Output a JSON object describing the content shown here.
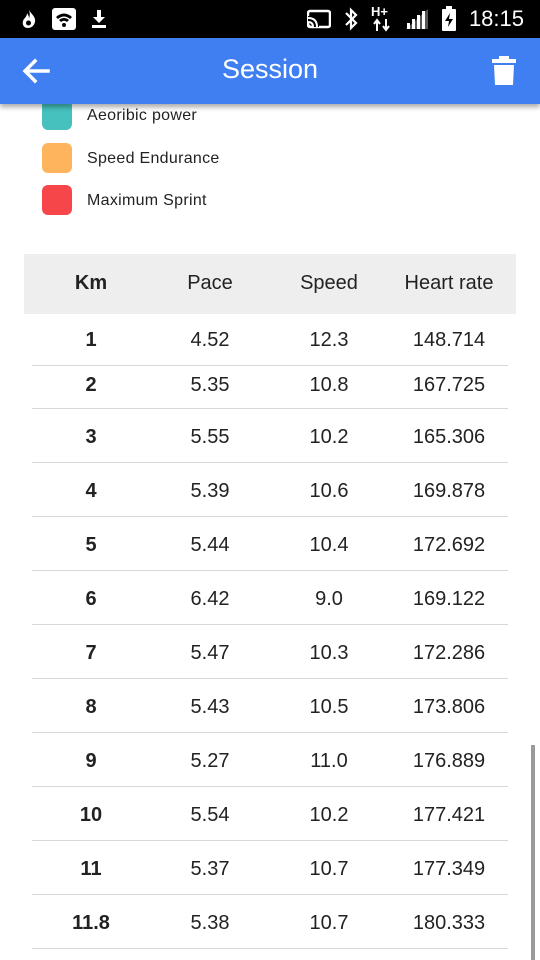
{
  "status_bar": {
    "time": "18:15",
    "icons": [
      "flame-icon",
      "wifi-icon",
      "download-icon",
      "cast-icon",
      "bluetooth-icon",
      "data-hplus-icon",
      "signal-icon",
      "battery-charging-icon"
    ],
    "hplus_label": "H+"
  },
  "app_bar": {
    "title": "Session",
    "back_icon": "arrow-back-icon",
    "delete_icon": "trash-icon",
    "color": "#3f7ff2"
  },
  "legend": [
    {
      "label": "Aeoribic power",
      "color": "#46c1bd"
    },
    {
      "label": "Speed Endurance",
      "color": "#fdb45c"
    },
    {
      "label": "Maximum Sprint",
      "color": "#f7464a"
    }
  ],
  "table": {
    "headers": [
      "Km",
      "Pace",
      "Speed",
      "Heart rate"
    ],
    "rows": [
      [
        "1",
        "4.52",
        "12.3",
        "148.714"
      ],
      [
        "2",
        "5.35",
        "10.8",
        "167.725"
      ],
      [
        "3",
        "5.55",
        "10.2",
        "165.306"
      ],
      [
        "4",
        "5.39",
        "10.6",
        "169.878"
      ],
      [
        "5",
        "5.44",
        "10.4",
        "172.692"
      ],
      [
        "6",
        "6.42",
        "9.0",
        "169.122"
      ],
      [
        "7",
        "5.47",
        "10.3",
        "172.286"
      ],
      [
        "8",
        "5.43",
        "10.5",
        "173.806"
      ],
      [
        "9",
        "5.27",
        "11.0",
        "176.889"
      ],
      [
        "10",
        "5.54",
        "10.2",
        "177.421"
      ],
      [
        "11",
        "5.37",
        "10.7",
        "177.349"
      ],
      [
        "11.8",
        "5.38",
        "10.7",
        "180.333"
      ]
    ]
  }
}
